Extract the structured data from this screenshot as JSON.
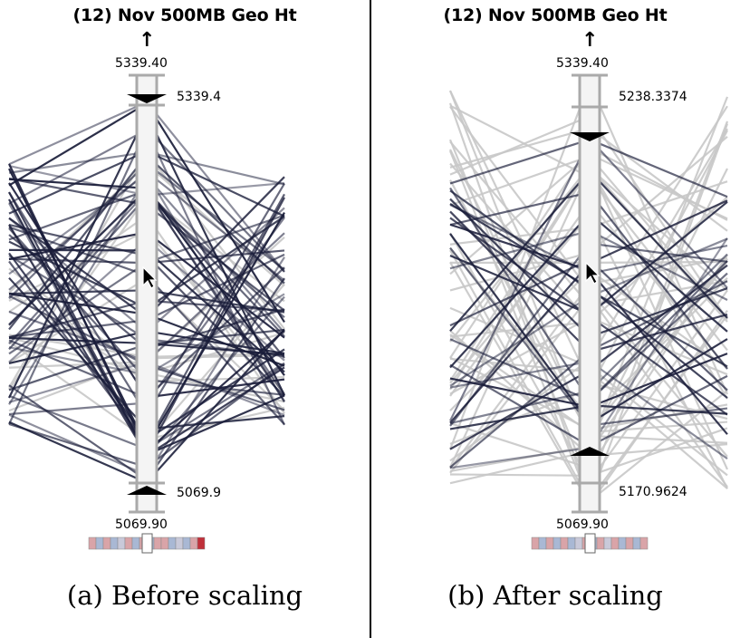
{
  "panels": [
    {
      "id": "a",
      "title": "(12) Nov 500MB Geo Ht",
      "max_value": "5339.40",
      "min_value": "5069.90",
      "upper_handle": "5339.4",
      "lower_handle": "5069.9",
      "caption": "(a)  Before scaling"
    },
    {
      "id": "b",
      "title": "(12) Nov 500MB Geo Ht",
      "max_value": "5339.40",
      "min_value": "5069.90",
      "upper_handle": "5238.3374",
      "lower_handle": "5170.9624",
      "caption": "(b)  After scaling"
    }
  ],
  "colors": {
    "line_dark": "#1a1d3a",
    "line_gray": "#c8c8c8",
    "axis": "#aaaaaa",
    "divider": "#000000"
  },
  "icons": [
    "up-arrow-icon",
    "cursor-icon",
    "triangle-handle-icon"
  ]
}
